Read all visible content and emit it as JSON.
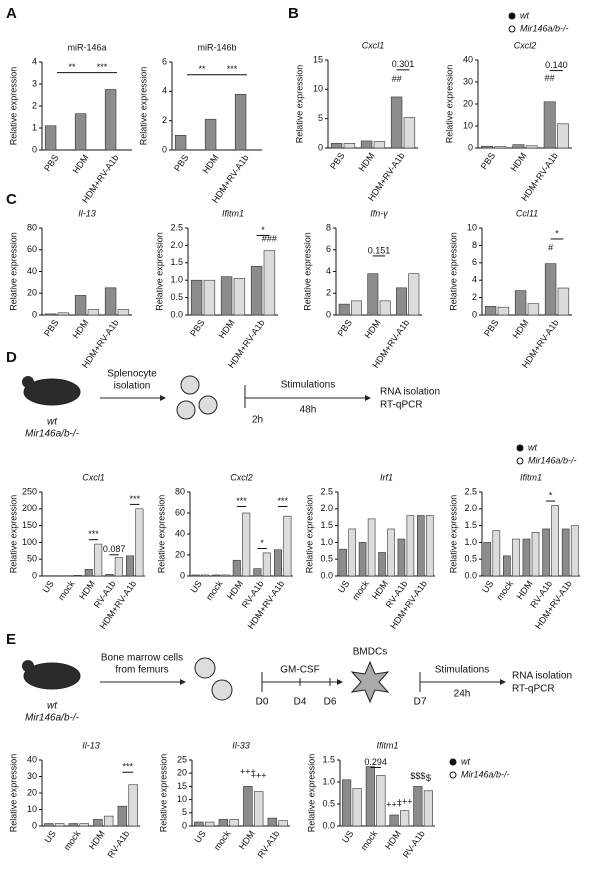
{
  "figure": {
    "panels": [
      "A",
      "B",
      "C",
      "D",
      "E"
    ],
    "scheme_d": {
      "strain": "wt",
      "ko": "Mir146a/b-/-",
      "step1": [
        "Splenocyte",
        "isolation"
      ],
      "t0": "2h",
      "stim": "Stimulations",
      "dur": "48h",
      "out": [
        "RNA isolation",
        "RT-qPCR"
      ]
    },
    "scheme_e": {
      "strain": "wt",
      "ko": "Mir146a/b-/-",
      "step1": [
        "Bone marrow cells",
        "from femurs"
      ],
      "gm": "GM-CSF",
      "days": [
        "D0",
        "D4",
        "D6"
      ],
      "cells": "BMDCs",
      "d7": "D7",
      "stim": "Stimulations",
      "dur": "24h",
      "out": [
        "RNA isolation",
        "RT-qPCR"
      ]
    }
  },
  "chart_data": [
    {
      "type": "bar",
      "title": "miR-146a",
      "ylabel": "Relative expression",
      "categories": [
        "PBS",
        "HDM",
        "HDM+RV-A1b"
      ],
      "series": [
        {
          "name": "wt",
          "color": "#8c8c8c",
          "values": [
            1.1,
            1.65,
            2.75
          ]
        },
        {
          "name": "Mir146a/b-/-",
          "color": "#dcdcdc",
          "values": [
            0,
            0,
            0
          ]
        }
      ],
      "ylim": [
        0,
        4
      ],
      "yticks": [
        0,
        1,
        2,
        3,
        4
      ],
      "annotations": [
        "**",
        "***"
      ]
    },
    {
      "type": "bar",
      "title": "miR-146b",
      "ylabel": "Relative expression",
      "categories": [
        "PBS",
        "HDM",
        "HDM+RV-A1b"
      ],
      "series": [
        {
          "name": "wt",
          "color": "#8c8c8c",
          "values": [
            1.0,
            2.1,
            3.8
          ]
        },
        {
          "name": "Mir146a/b-/-",
          "color": "#dcdcdc",
          "values": [
            0,
            0,
            0
          ]
        }
      ],
      "ylim": [
        0,
        6
      ],
      "yticks": [
        0,
        2,
        4,
        6
      ],
      "annotations": [
        "**",
        "***"
      ]
    },
    {
      "type": "bar",
      "title": "Cxcl1",
      "ylabel": "Relative expression",
      "categories": [
        "PBS",
        "HDM",
        "HDM+RV-A1b"
      ],
      "series": [
        {
          "name": "wt",
          "color": "#8c8c8c",
          "values": [
            0.8,
            1.2,
            8.7
          ]
        },
        {
          "name": "Mir146a/b-/-",
          "color": "#dcdcdc",
          "values": [
            0.8,
            1.1,
            5.2
          ]
        }
      ],
      "ylim": [
        0,
        15
      ],
      "yticks": [
        0,
        5,
        10,
        15
      ],
      "annotations": [
        "0.301",
        "##"
      ]
    },
    {
      "type": "bar",
      "title": "Cxcl2",
      "ylabel": "Relative expression",
      "categories": [
        "PBS",
        "HDM",
        "HDM+RV-A1b"
      ],
      "series": [
        {
          "name": "wt",
          "color": "#8c8c8c",
          "values": [
            0.8,
            1.5,
            21
          ]
        },
        {
          "name": "Mir146a/b-/-",
          "color": "#dcdcdc",
          "values": [
            0.6,
            1.0,
            11
          ]
        }
      ],
      "ylim": [
        0,
        40
      ],
      "yticks": [
        0,
        10,
        20,
        30,
        40
      ],
      "annotations": [
        "0.140",
        "##"
      ],
      "legend": "top"
    },
    {
      "type": "bar",
      "title": "Il-13",
      "ylabel": "Relative expression",
      "categories": [
        "PBS",
        "HDM",
        "HDM+RV-A1b"
      ],
      "series": [
        {
          "name": "wt",
          "color": "#8c8c8c",
          "values": [
            1,
            18,
            25
          ]
        },
        {
          "name": "Mir146a/b-/-",
          "color": "#dcdcdc",
          "values": [
            2,
            5,
            5
          ]
        }
      ],
      "ylim": [
        0,
        80
      ],
      "yticks": [
        0,
        20,
        40,
        60,
        80
      ],
      "annotations": []
    },
    {
      "type": "bar",
      "title": "Ifitm1",
      "ylabel": "Relative expression",
      "categories": [
        "PBS",
        "HDM",
        "HDM+RV-A1b"
      ],
      "series": [
        {
          "name": "wt",
          "color": "#8c8c8c",
          "values": [
            1.0,
            1.1,
            1.4
          ]
        },
        {
          "name": "Mir146a/b-/-",
          "color": "#dcdcdc",
          "values": [
            1.0,
            1.05,
            1.85
          ]
        }
      ],
      "ylim": [
        0,
        2.5
      ],
      "yticks": [
        {
          "value": 0,
          "label": "0.0"
        },
        0.5,
        {
          "value": 1,
          "label": "1.0"
        },
        1.5,
        {
          "value": 2,
          "label": "2.0"
        },
        2.5
      ],
      "annotations": [
        "*",
        "###"
      ]
    },
    {
      "type": "bar",
      "title": "Ifn-γ",
      "ylabel": "Relative expression",
      "categories": [
        "PBS",
        "HDM",
        "HDM+RV-A1b"
      ],
      "series": [
        {
          "name": "wt",
          "color": "#8c8c8c",
          "values": [
            1.0,
            3.8,
            2.5
          ]
        },
        {
          "name": "Mir146a/b-/-",
          "color": "#dcdcdc",
          "values": [
            1.3,
            1.3,
            3.8
          ]
        }
      ],
      "ylim": [
        0,
        8
      ],
      "yticks": [
        0,
        2,
        4,
        6,
        8
      ],
      "annotations": [
        "0.151"
      ]
    },
    {
      "type": "bar",
      "title": "Ccl11",
      "ylabel": "Relative expression",
      "categories": [
        "PBS",
        "HDM",
        "HDM+RV-A1b"
      ],
      "series": [
        {
          "name": "wt",
          "color": "#8c8c8c",
          "values": [
            1.0,
            2.8,
            5.9
          ]
        },
        {
          "name": "Mir146a/b-/-",
          "color": "#dcdcdc",
          "values": [
            0.9,
            1.3,
            3.1
          ]
        }
      ],
      "ylim": [
        0,
        10
      ],
      "yticks": [
        0,
        2,
        4,
        6,
        8,
        10
      ],
      "annotations": [
        "*",
        "#"
      ]
    },
    {
      "type": "bar",
      "title": "Cxcl1",
      "ylabel": "Relative expression",
      "categories": [
        "US",
        "mock",
        "HDM",
        "RV-A1b",
        "HDM+RV-A1b"
      ],
      "series": [
        {
          "name": "wt",
          "color": "#8c8c8c",
          "values": [
            1,
            1,
            20,
            5,
            60
          ]
        },
        {
          "name": "Mir146a/b-/-",
          "color": "#dcdcdc",
          "values": [
            1,
            2,
            95,
            55,
            200
          ]
        }
      ],
      "ylim": [
        0,
        250
      ],
      "yticks": [
        0,
        50,
        100,
        150,
        200,
        250
      ],
      "annotations": [
        "***",
        "0.087",
        "***"
      ]
    },
    {
      "type": "bar",
      "title": "Cxcl2",
      "ylabel": "Relative expression",
      "categories": [
        "US",
        "mock",
        "HDM",
        "RV-A1b",
        "HDM+RV-A1b"
      ],
      "series": [
        {
          "name": "wt",
          "color": "#8c8c8c",
          "values": [
            1,
            1,
            15,
            7,
            25
          ]
        },
        {
          "name": "Mir146a/b-/-",
          "color": "#dcdcdc",
          "values": [
            1,
            1,
            60,
            22,
            57
          ]
        }
      ],
      "ylim": [
        0,
        80
      ],
      "yticks": [
        0,
        20,
        40,
        60,
        80
      ],
      "annotations": [
        "***",
        "*",
        "***"
      ]
    },
    {
      "type": "bar",
      "title": "Irf1",
      "ylabel": "Relative expression",
      "categories": [
        "US",
        "mock",
        "HDM",
        "RV-A1b",
        "HDM+RV-A1b"
      ],
      "series": [
        {
          "name": "wt",
          "color": "#8c8c8c",
          "values": [
            0.8,
            1.0,
            0.7,
            1.1,
            1.8
          ]
        },
        {
          "name": "Mir146a/b-/-",
          "color": "#dcdcdc",
          "values": [
            1.4,
            1.7,
            1.4,
            1.8,
            1.8
          ]
        }
      ],
      "ylim": [
        0,
        2.5
      ],
      "yticks": [
        {
          "value": 0,
          "label": "0.0"
        },
        0.5,
        {
          "value": 1,
          "label": "1.0"
        },
        1.5,
        {
          "value": 2,
          "label": "2.0"
        },
        2.5
      ],
      "annotations": []
    },
    {
      "type": "bar",
      "title": "Ifitm1",
      "ylabel": "Relative expression",
      "categories": [
        "US",
        "mock",
        "HDM",
        "RV-A1b",
        "HDM+RV-A1b"
      ],
      "series": [
        {
          "name": "wt",
          "color": "#8c8c8c",
          "values": [
            1.0,
            0.6,
            1.1,
            1.4,
            1.4
          ]
        },
        {
          "name": "Mir146a/b-/-",
          "color": "#dcdcdc",
          "values": [
            1.35,
            1.1,
            1.3,
            2.1,
            1.5
          ]
        }
      ],
      "ylim": [
        0,
        2.5
      ],
      "yticks": [
        {
          "value": 0,
          "label": "0.0"
        },
        0.5,
        {
          "value": 1,
          "label": "1.0"
        },
        1.5,
        {
          "value": 2,
          "label": "2.0"
        },
        2.5
      ],
      "annotations": [
        "*"
      ],
      "legend": "top"
    },
    {
      "type": "bar",
      "title": "Il-13",
      "ylabel": "Relative expression",
      "categories": [
        "US",
        "mock",
        "HDM",
        "RV-A1b"
      ],
      "series": [
        {
          "name": "wt",
          "color": "#8c8c8c",
          "values": [
            1.5,
            1.5,
            4,
            12
          ]
        },
        {
          "name": "Mir146a/b-/-",
          "color": "#dcdcdc",
          "values": [
            1.5,
            1.5,
            6,
            25
          ]
        }
      ],
      "ylim": [
        0,
        40
      ],
      "yticks": [
        0,
        10,
        20,
        30,
        40
      ],
      "annotations": [
        "***"
      ]
    },
    {
      "type": "bar",
      "title": "Il-33",
      "ylabel": "Relative expression",
      "categories": [
        "US",
        "mock",
        "HDM",
        "RV-A1b"
      ],
      "series": [
        {
          "name": "wt",
          "color": "#8c8c8c",
          "values": [
            1.5,
            2.5,
            15,
            3
          ]
        },
        {
          "name": "Mir146a/b-/-",
          "color": "#dcdcdc",
          "values": [
            1.5,
            2.5,
            13,
            2
          ]
        }
      ],
      "ylim": [
        0,
        25
      ],
      "yticks": [
        0,
        5,
        10,
        15,
        20,
        25
      ],
      "annotations": [
        "+++",
        "+++"
      ]
    },
    {
      "type": "bar",
      "title": "Ifitm1",
      "ylabel": "Relative expression",
      "categories": [
        "US",
        "mock",
        "HDM",
        "RV-A1b"
      ],
      "series": [
        {
          "name": "wt",
          "color": "#8c8c8c",
          "values": [
            1.05,
            1.35,
            0.25,
            0.9
          ]
        },
        {
          "name": "Mir146a/b-/-",
          "color": "#dcdcdc",
          "values": [
            0.85,
            1.15,
            0.35,
            0.8
          ]
        }
      ],
      "ylim": [
        0,
        1.5
      ],
      "yticks": [
        {
          "value": 0,
          "label": "0.0"
        },
        0.5,
        {
          "value": 1,
          "label": "1.0"
        },
        1.5
      ],
      "annotations": [
        "0.294",
        "+++",
        "+++",
        "$$$",
        "$"
      ],
      "legend": "right"
    }
  ]
}
